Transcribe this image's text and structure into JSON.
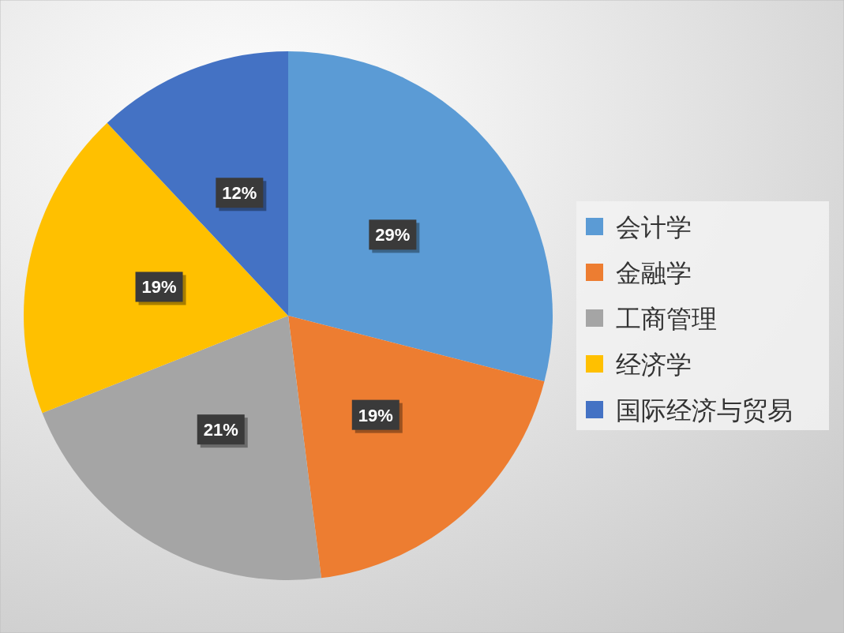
{
  "chart_data": {
    "type": "pie",
    "categories": [
      "会计学",
      "金融学",
      "工商管理",
      "经济学",
      "国际经济与贸易"
    ],
    "values": [
      29,
      19,
      21,
      19,
      12
    ],
    "colors": [
      "#5b9bd5",
      "#ed7d31",
      "#a5a5a5",
      "#ffc000",
      "#4472c4"
    ],
    "value_labels": [
      "29%",
      "19%",
      "21%",
      "19%",
      "12%"
    ],
    "legend": "right"
  }
}
